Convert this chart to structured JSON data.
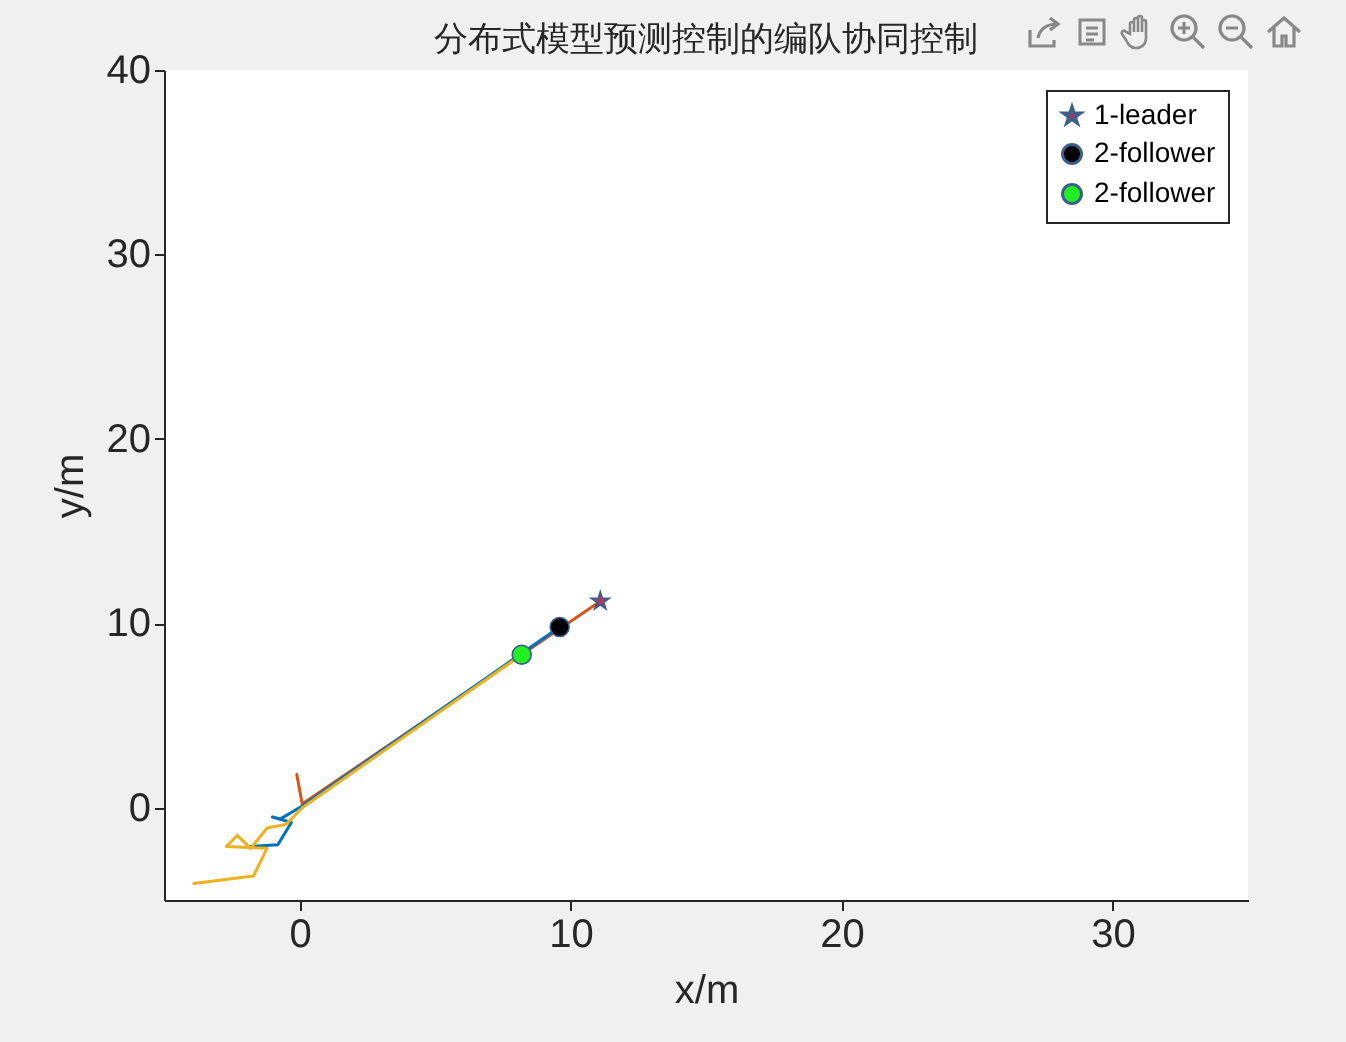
{
  "chart_data": {
    "type": "line",
    "title": "分布式模型预测控制的编队协同控制",
    "xlabel": "x/m",
    "ylabel": "y/m",
    "xlim": [
      -5,
      35
    ],
    "ylim": [
      -5,
      40
    ],
    "xticks": [
      0,
      10,
      20,
      30
    ],
    "yticks": [
      0,
      10,
      20,
      30,
      40
    ],
    "grid": false,
    "legend": "top right",
    "series": [
      {
        "type": "line",
        "color": "#d95319",
        "x": [
          -0.1,
          0.1,
          11.1
        ],
        "values": [
          1.8,
          0.2,
          11.2
        ]
      },
      {
        "type": "line",
        "color": "#0072bd",
        "x": [
          -1.9,
          -0.8,
          -0.3,
          -1.0,
          -0.7,
          0.1,
          9.6
        ],
        "values": [
          -2.1,
          -2.0,
          -0.8,
          -0.5,
          -0.6,
          0.1,
          9.8
        ]
      },
      {
        "type": "line",
        "color": "#edb120",
        "x": [
          -3.9,
          -1.7,
          -1.2,
          -2.7,
          -2.3,
          -1.8,
          -1.2,
          -0.5,
          0.1,
          8.2
        ],
        "values": [
          -4.1,
          -3.7,
          -2.2,
          -2.1,
          -1.5,
          -2.2,
          -1.1,
          -0.9,
          0.0,
          8.3
        ]
      },
      {
        "type": "scatter",
        "name": "1-leader",
        "color": "#a23a6a",
        "marker": "star",
        "x": [
          11.1
        ],
        "values": [
          11.2
        ]
      },
      {
        "type": "scatter",
        "name": "2-follower",
        "color": "#000000",
        "marker": "circle",
        "x": [
          9.6
        ],
        "values": [
          9.8
        ]
      },
      {
        "type": "scatter",
        "name": "2-follower",
        "color": "#22ee22",
        "marker": "circle",
        "x": [
          8.2
        ],
        "values": [
          8.3
        ]
      }
    ]
  }
}
